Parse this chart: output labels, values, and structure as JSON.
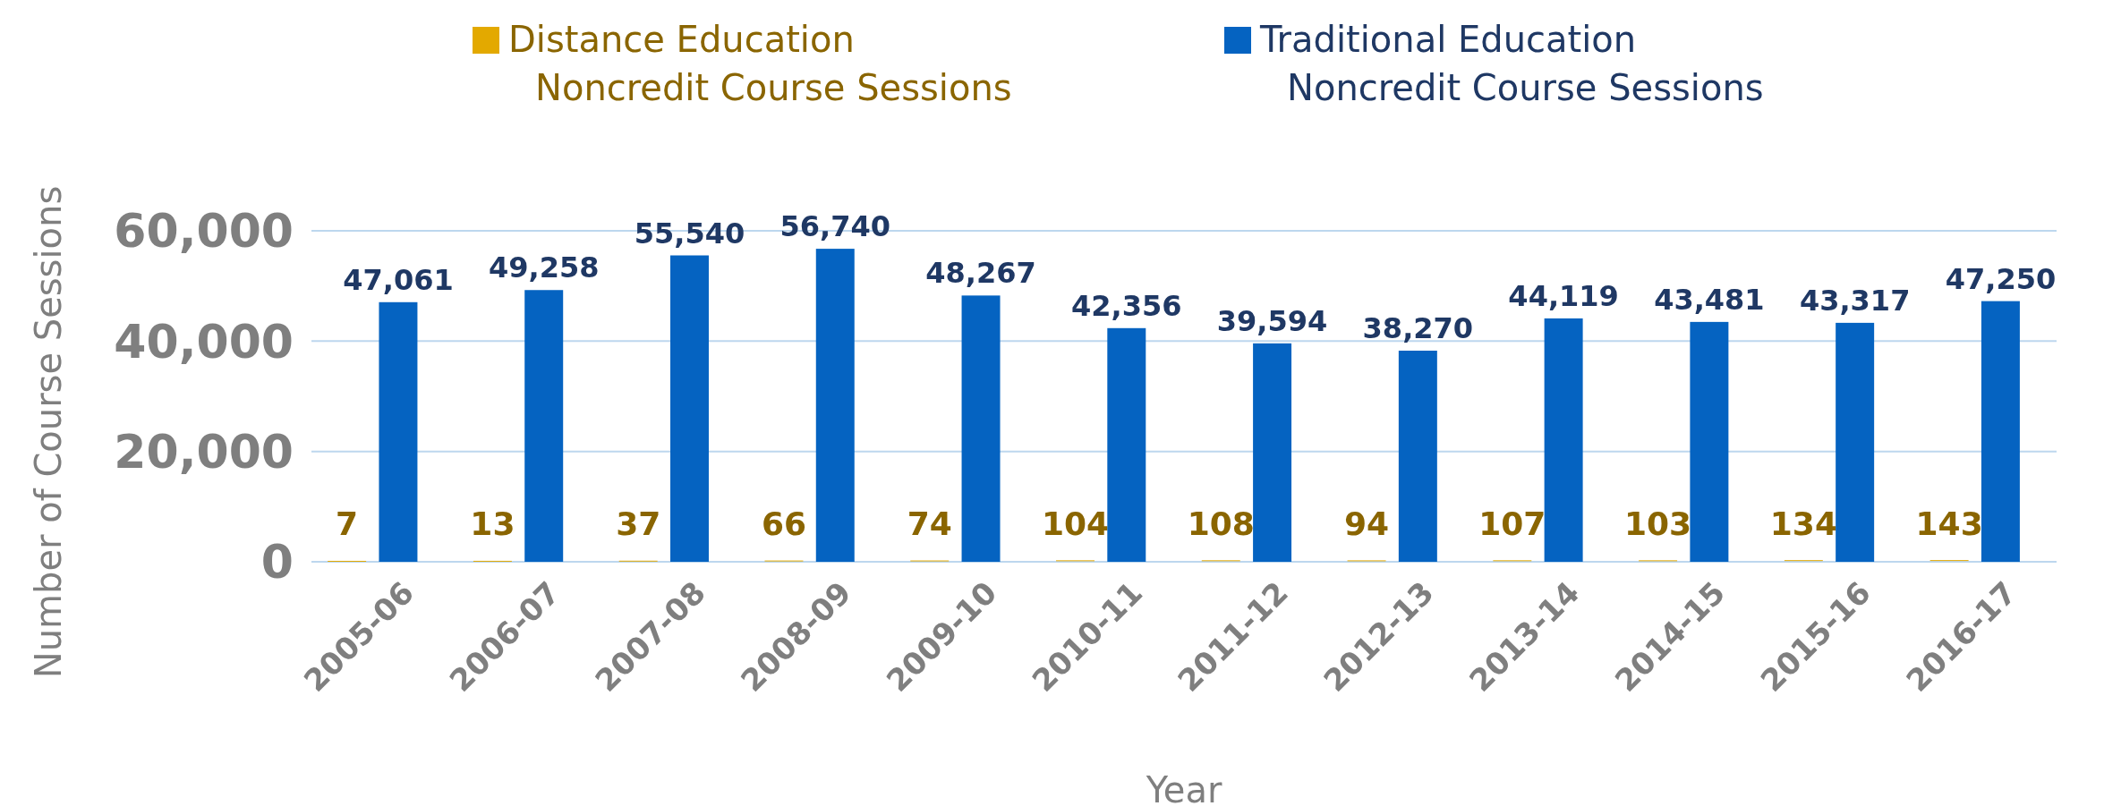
{
  "chart_data": {
    "type": "bar",
    "xlabel": "Year",
    "ylabel": "Number of Course Sessions",
    "categories": [
      "2005-06",
      "2006-07",
      "2007-08",
      "2008-09",
      "2009-10",
      "2010-11",
      "2011-12",
      "2012-13",
      "2013-14",
      "2014-15",
      "2015-16",
      "2016-17"
    ],
    "series": [
      {
        "name": "Distance Education Noncredit Course Sessions",
        "color": "#e3a900",
        "values": [
          7,
          13,
          37,
          66,
          74,
          104,
          108,
          94,
          107,
          103,
          134,
          143
        ],
        "value_labels": [
          "7",
          "13",
          "37",
          "66",
          "74",
          "104",
          "108",
          "94",
          "107",
          "103",
          "134",
          "143"
        ]
      },
      {
        "name": "Traditional Education Noncredit Course Sessions",
        "color": "#0563c1",
        "values": [
          47061,
          49258,
          55540,
          56740,
          48267,
          42356,
          39594,
          38270,
          44119,
          43481,
          43317,
          47250
        ],
        "value_labels": [
          "47,061",
          "49,258",
          "55,540",
          "56,740",
          "48,267",
          "42,356",
          "39,594",
          "38,270",
          "44,119",
          "43,481",
          "43,317",
          "47,250"
        ]
      }
    ],
    "ylim": [
      0,
      60000
    ],
    "yticks": [
      {
        "value": 0,
        "label": "0"
      },
      {
        "value": 20000,
        "label": "20,000"
      },
      {
        "value": 40000,
        "label": "40,000"
      },
      {
        "value": 60000,
        "label": "60,000"
      }
    ],
    "grid": "y",
    "legend": "top"
  }
}
